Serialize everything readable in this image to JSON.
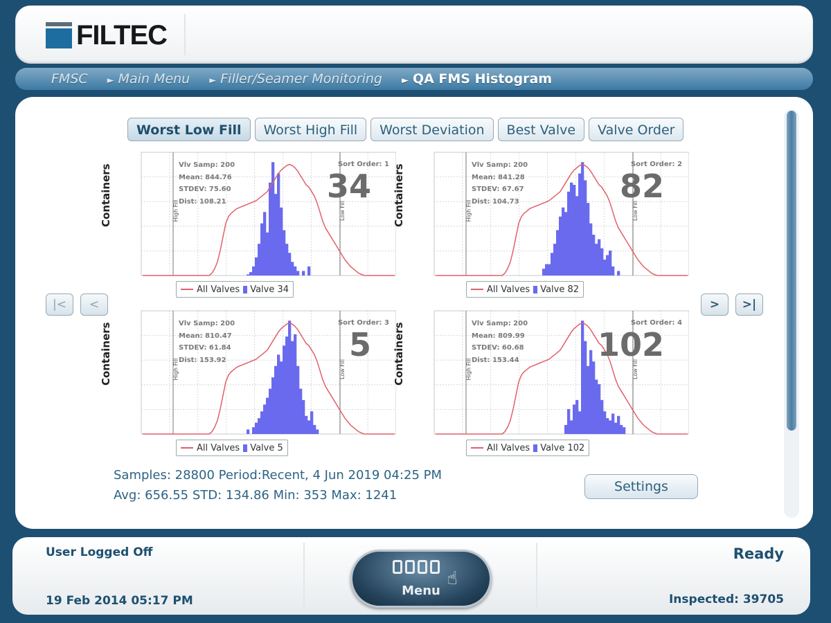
{
  "header": {
    "logo_text": "FILTEC",
    "logo_mark": "FILTEC"
  },
  "breadcrumb": [
    {
      "label": "FMSC",
      "arrow": ""
    },
    {
      "label": "Main Menu",
      "arrow": "►"
    },
    {
      "label": "Filler/Seamer Monitoring",
      "arrow": "►"
    },
    {
      "label": "QA FMS Histogram",
      "arrow": "►"
    }
  ],
  "tabs": [
    {
      "label": "Worst Low Fill",
      "active": true
    },
    {
      "label": "Worst High Fill",
      "active": false
    },
    {
      "label": "Worst Deviation",
      "active": false
    },
    {
      "label": "Best Valve",
      "active": false
    },
    {
      "label": "Valve Order",
      "active": false
    }
  ],
  "nav": {
    "first": "|<",
    "prev": "<",
    "next": ">",
    "last": ">|"
  },
  "charts": [
    {
      "valve": "34",
      "big": "34",
      "samp": "Vlv Samp: 200",
      "mean": "Mean: 844.76",
      "stdev": "STDEV: 75.60",
      "dist": "Dist: 108.21",
      "sort": "Sort Order: 1",
      "legend_all": "All Valves",
      "legend_valve": "Valve 34",
      "ylabel": "Containers",
      "high_label": "High Fill",
      "low_label": "Low Fill"
    },
    {
      "valve": "82",
      "big": "82",
      "samp": "Vlv Samp: 200",
      "mean": "Mean: 841.28",
      "stdev": "STDEV: 67.67",
      "dist": "Dist: 104.73",
      "sort": "Sort Order: 2",
      "legend_all": "All Valves",
      "legend_valve": "Valve 82",
      "ylabel": "Containers",
      "high_label": "High Fill",
      "low_label": "Low Fill"
    },
    {
      "valve": "5",
      "big": "5",
      "samp": "Vlv Samp: 200",
      "mean": "Mean: 810.47",
      "stdev": "STDEV: 61.84",
      "dist": "Dist: 153.92",
      "sort": "Sort Order: 3",
      "legend_all": "All Valves",
      "legend_valve": "Valve 5",
      "ylabel": "Containers",
      "high_label": "High Fill",
      "low_label": "Low Fill"
    },
    {
      "valve": "102",
      "big": "102",
      "samp": "Vlv Samp: 200",
      "mean": "Mean: 809.99",
      "stdev": "STDEV: 60.68",
      "dist": "Dist: 153.44",
      "sort": "Sort Order: 4",
      "legend_all": "All Valves",
      "legend_valve": "Valve 102",
      "ylabel": "Containers",
      "high_label": "High Fill",
      "low_label": "Low Fill"
    }
  ],
  "summary": {
    "line1": "Samples: 28800 Period:Recent, 4 Jun 2019 04:25 PM",
    "line2": "Avg: 656.55 STD: 134.86 Min: 353 Max: 1241"
  },
  "settings_label": "Settings",
  "footer": {
    "user": "User Logged Off",
    "date": "19 Feb 2014 05:17 PM",
    "menu": "Menu",
    "status": "Ready",
    "inspected": "Inspected: 39705"
  },
  "colors": {
    "bars": "#6a6aee",
    "all_valves_line": "#e0606a",
    "accent": "#1d4f73"
  },
  "chart_data": [
    {
      "type": "bar",
      "title": "",
      "ylabel": "Containers",
      "series": [
        {
          "name": "Valve 34",
          "values": [
            0,
            0,
            0,
            0,
            0,
            0,
            0,
            0,
            0,
            0,
            0,
            0,
            0,
            0,
            0,
            0,
            0,
            0,
            0,
            0,
            0,
            0,
            0,
            0,
            0,
            0,
            0,
            0,
            0,
            0,
            0,
            0,
            0,
            0,
            0,
            0,
            0,
            0,
            1,
            3,
            8,
            16,
            28,
            46,
            56,
            38,
            82,
            100,
            72,
            90,
            60,
            40,
            28,
            20,
            12,
            8,
            4,
            0,
            4,
            0,
            8,
            0,
            0,
            0,
            0,
            0,
            0,
            0,
            0,
            0,
            0,
            0,
            0,
            0,
            0,
            0,
            0,
            0,
            0,
            0,
            0,
            0,
            0,
            0,
            0,
            0,
            0,
            0,
            0,
            0,
            0,
            0
          ]
        },
        {
          "name": "All Valves",
          "values": [
            0,
            0,
            0,
            0,
            0,
            0,
            0,
            0,
            0,
            0,
            0,
            0,
            0,
            0,
            0,
            0,
            0,
            0,
            0,
            0,
            0,
            0,
            0,
            0,
            0,
            2,
            6,
            12,
            22,
            34,
            46,
            52,
            55,
            57,
            59,
            60,
            61,
            62,
            63,
            64,
            65,
            66,
            68,
            70,
            72,
            74,
            78,
            82,
            86,
            90,
            93,
            95,
            97,
            98,
            97,
            95,
            92,
            88,
            84,
            80,
            78,
            74,
            70,
            64,
            56,
            48,
            42,
            38,
            34,
            30,
            26,
            22,
            18,
            14,
            11,
            8,
            6,
            4,
            2,
            1,
            0,
            0,
            0,
            0,
            0,
            0,
            0,
            0,
            0,
            0,
            0,
            0
          ]
        }
      ]
    },
    {
      "type": "bar",
      "title": "",
      "ylabel": "Containers",
      "series": [
        {
          "name": "Valve 82",
          "values": [
            0,
            0,
            0,
            0,
            0,
            0,
            0,
            0,
            0,
            0,
            0,
            0,
            0,
            0,
            0,
            0,
            0,
            0,
            0,
            0,
            0,
            0,
            0,
            0,
            0,
            0,
            0,
            0,
            0,
            0,
            0,
            0,
            0,
            0,
            0,
            0,
            0,
            0,
            0,
            6,
            10,
            10,
            20,
            28,
            40,
            52,
            60,
            56,
            74,
            82,
            80,
            70,
            90,
            100,
            84,
            64,
            46,
            36,
            28,
            32,
            24,
            14,
            18,
            22,
            8,
            0,
            4,
            0,
            0,
            0,
            0,
            0,
            0,
            0,
            0,
            0,
            0,
            0,
            0,
            0,
            0,
            0,
            0,
            0,
            0,
            0,
            0,
            0,
            0,
            0,
            0,
            0
          ]
        },
        {
          "name": "All Valves",
          "values": [
            0,
            0,
            0,
            0,
            0,
            0,
            0,
            0,
            0,
            0,
            0,
            0,
            0,
            0,
            0,
            0,
            0,
            0,
            0,
            0,
            0,
            0,
            0,
            0,
            0,
            2,
            6,
            12,
            22,
            34,
            46,
            52,
            55,
            57,
            59,
            60,
            61,
            62,
            63,
            64,
            65,
            66,
            68,
            70,
            72,
            74,
            78,
            82,
            86,
            90,
            93,
            95,
            97,
            98,
            97,
            95,
            92,
            88,
            84,
            80,
            78,
            74,
            70,
            64,
            56,
            48,
            42,
            38,
            34,
            30,
            26,
            22,
            18,
            14,
            11,
            8,
            6,
            4,
            2,
            1,
            0,
            0,
            0,
            0,
            0,
            0,
            0,
            0,
            0,
            0,
            0,
            0
          ]
        }
      ]
    },
    {
      "type": "bar",
      "title": "",
      "ylabel": "Containers",
      "series": [
        {
          "name": "Valve 5",
          "values": [
            0,
            0,
            0,
            0,
            0,
            0,
            0,
            0,
            0,
            0,
            0,
            0,
            0,
            0,
            0,
            0,
            0,
            0,
            0,
            0,
            0,
            0,
            0,
            0,
            0,
            0,
            0,
            0,
            0,
            0,
            0,
            0,
            0,
            0,
            0,
            0,
            0,
            0,
            4,
            0,
            6,
            10,
            14,
            20,
            26,
            32,
            40,
            50,
            60,
            70,
            64,
            78,
            86,
            100,
            82,
            88,
            60,
            40,
            30,
            16,
            12,
            20,
            8,
            4,
            0,
            0,
            0,
            0,
            0,
            0,
            0,
            0,
            0,
            0,
            0,
            0,
            0,
            0,
            0,
            0,
            0,
            0,
            0,
            0,
            0,
            0,
            0,
            0,
            0,
            0,
            0,
            0
          ]
        },
        {
          "name": "All Valves",
          "values": [
            0,
            0,
            0,
            0,
            0,
            0,
            0,
            0,
            0,
            0,
            0,
            0,
            0,
            0,
            0,
            0,
            0,
            0,
            0,
            0,
            0,
            0,
            0,
            0,
            0,
            2,
            6,
            12,
            22,
            34,
            46,
            52,
            55,
            57,
            59,
            60,
            61,
            62,
            63,
            64,
            65,
            66,
            68,
            70,
            72,
            74,
            78,
            82,
            86,
            90,
            93,
            95,
            97,
            98,
            97,
            95,
            92,
            88,
            84,
            80,
            78,
            74,
            70,
            64,
            56,
            48,
            42,
            38,
            34,
            30,
            26,
            22,
            18,
            14,
            11,
            8,
            6,
            4,
            2,
            1,
            0,
            0,
            0,
            0,
            0,
            0,
            0,
            0,
            0,
            0,
            0,
            0
          ]
        }
      ]
    },
    {
      "type": "bar",
      "title": "",
      "ylabel": "Containers",
      "series": [
        {
          "name": "Valve 102",
          "values": [
            0,
            0,
            0,
            0,
            0,
            0,
            0,
            0,
            0,
            0,
            0,
            0,
            0,
            0,
            0,
            0,
            0,
            0,
            0,
            0,
            0,
            0,
            0,
            0,
            0,
            0,
            0,
            0,
            0,
            0,
            0,
            0,
            0,
            0,
            0,
            0,
            0,
            0,
            0,
            0,
            0,
            0,
            0,
            0,
            0,
            0,
            0,
            8,
            22,
            12,
            26,
            30,
            20,
            100,
            82,
            60,
            74,
            64,
            48,
            44,
            30,
            20,
            14,
            12,
            18,
            10,
            16,
            8,
            6,
            0,
            0,
            0,
            0,
            0,
            0,
            0,
            0,
            0,
            0,
            0,
            0,
            0,
            0,
            0,
            0,
            0,
            0,
            0,
            0,
            0,
            0,
            0
          ]
        },
        {
          "name": "All Valves",
          "values": [
            0,
            0,
            0,
            0,
            0,
            0,
            0,
            0,
            0,
            0,
            0,
            0,
            0,
            0,
            0,
            0,
            0,
            0,
            0,
            0,
            0,
            0,
            0,
            0,
            0,
            2,
            6,
            12,
            22,
            34,
            46,
            52,
            55,
            57,
            59,
            60,
            61,
            62,
            63,
            64,
            65,
            66,
            68,
            70,
            72,
            74,
            78,
            82,
            86,
            90,
            93,
            95,
            97,
            98,
            97,
            95,
            92,
            88,
            84,
            80,
            78,
            74,
            70,
            64,
            56,
            48,
            42,
            38,
            34,
            30,
            26,
            22,
            18,
            14,
            11,
            8,
            6,
            4,
            2,
            1,
            0,
            0,
            0,
            0,
            0,
            0,
            0,
            0,
            0,
            0,
            0,
            0
          ]
        }
      ]
    }
  ]
}
